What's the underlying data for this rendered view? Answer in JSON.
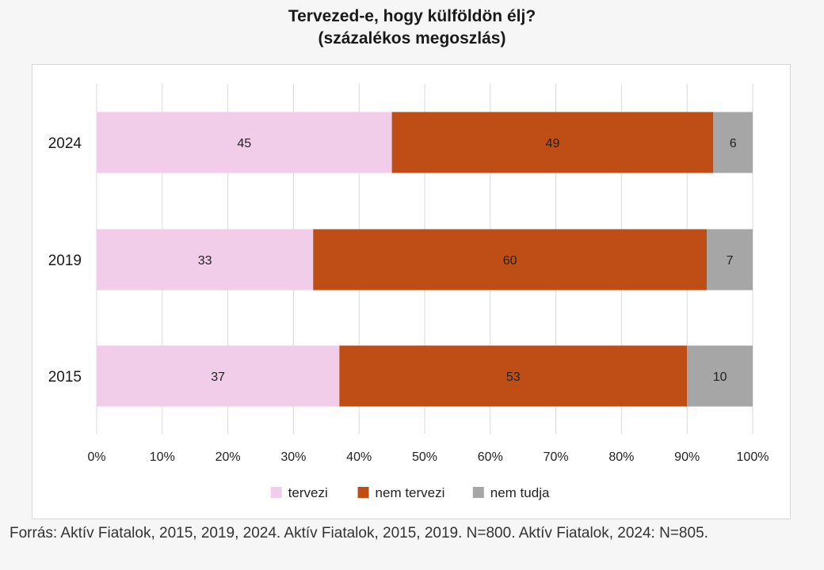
{
  "chart_data": {
    "type": "bar",
    "orientation": "horizontal",
    "stacked": true,
    "title": "Tervezed-e, hogy külföldön élj?",
    "subtitle": "(százalékos megoszlás)",
    "categories": [
      "2024",
      "2019",
      "2015"
    ],
    "series": [
      {
        "name": "tervezi",
        "values": [
          45,
          33,
          37
        ],
        "color": "#f1cdea"
      },
      {
        "name": "nem tervezi",
        "values": [
          49,
          60,
          53
        ],
        "color": "#bf4e16"
      },
      {
        "name": "nem tudja",
        "values": [
          6,
          7,
          10
        ],
        "color": "#a6a6a6"
      }
    ],
    "xlim": [
      0,
      100
    ],
    "xticks": [
      "0%",
      "10%",
      "20%",
      "30%",
      "40%",
      "50%",
      "60%",
      "70%",
      "80%",
      "90%",
      "100%"
    ],
    "grid": true,
    "legend": "bottom"
  },
  "source": "Forrás: Aktív Fiatalok, 2015, 2019, 2024. Aktív Fiatalok, 2015, 2019. N=800. Aktív Fiatalok, 2024: N=805."
}
